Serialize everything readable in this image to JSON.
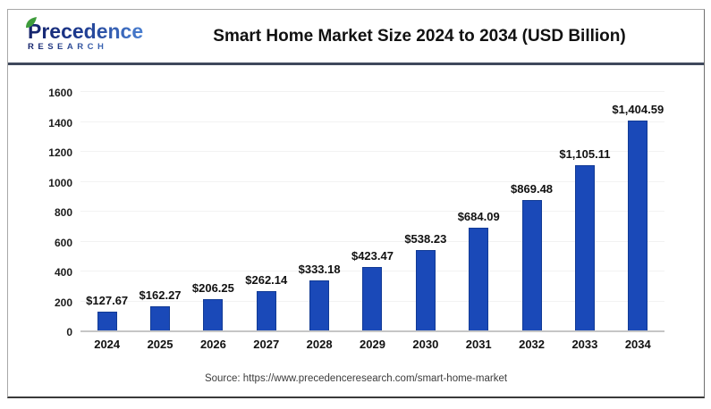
{
  "header": {
    "logo": {
      "name": "Precedence",
      "sub": "RESEARCH"
    },
    "title": "Smart Home Market Size 2024 to 2034 (USD Billion)"
  },
  "chart_data": {
    "type": "bar",
    "title": "Smart Home Market Size 2024 to 2034 (USD Billion)",
    "categories": [
      "2024",
      "2025",
      "2026",
      "2027",
      "2028",
      "2029",
      "2030",
      "2031",
      "2032",
      "2033",
      "2034"
    ],
    "values": [
      127.67,
      162.27,
      206.25,
      262.14,
      333.18,
      423.47,
      538.23,
      684.09,
      869.48,
      1105.11,
      1404.59
    ],
    "value_labels": [
      "$127.67",
      "$162.27",
      "$206.25",
      "$262.14",
      "$333.18",
      "$423.47",
      "$538.23",
      "$684.09",
      "$869.48",
      "$1,105.11",
      "$1,404.59"
    ],
    "xlabel": "",
    "ylabel": "",
    "ylim": [
      0,
      1600
    ],
    "yticks": [
      0,
      200,
      400,
      600,
      800,
      1000,
      1200,
      1400,
      1600
    ],
    "grid": true,
    "legend": null,
    "bar_color": "#1a49b8",
    "bar_border_color": "#113a95"
  },
  "footer": {
    "source": "Source: https://www.precedenceresearch.com/smart-home-market"
  },
  "colors": {
    "header_separator": "#3f485c",
    "gridline": "#f2f2f2",
    "axis_baseline": "#c6c6c6",
    "logo_navy": "#16246b",
    "logo_blue": "#4a7fd0",
    "leaf_green": "#3e9c3b",
    "title_text": "#111111"
  }
}
